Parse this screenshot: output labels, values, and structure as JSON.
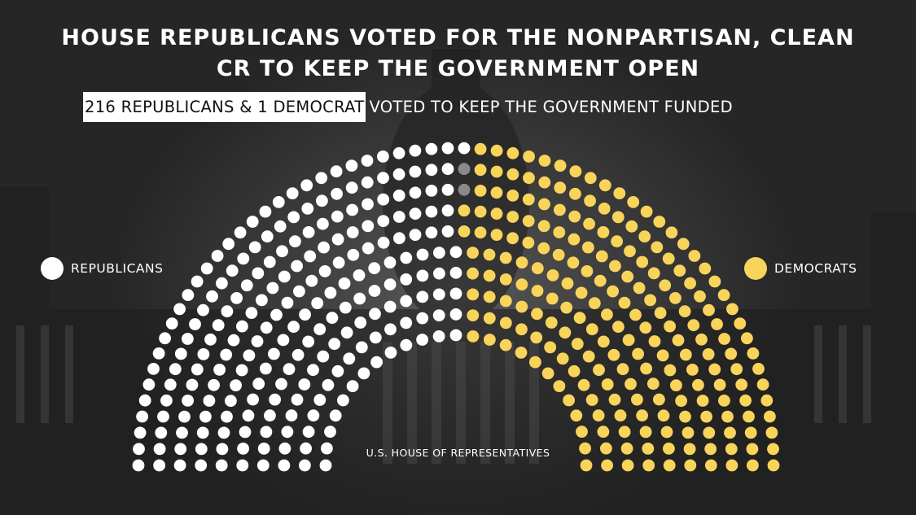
{
  "title_lines": [
    "HOUSE REPUBLICANS VOTED FOR THE NONPARTISAN, CLEAN",
    "CR TO KEEP THE GOVERNMENT OPEN"
  ],
  "subtitle": {
    "highlight": "216 REPUBLICANS & 1 DEMOCRAT",
    "rest": "VOTED TO KEEP THE GOVERNMENT FUNDED"
  },
  "legend": {
    "republicans": "REPUBLICANS",
    "democrats": "DEMOCRATS"
  },
  "chamber_label": "U.S. HOUSE OF REPRESENTATIVES",
  "colors": {
    "republican": "#ffffff",
    "democrat": "#f9d45a",
    "vacant": "#8a8a8a",
    "subtitle_highlight_bg": "#ffffff"
  },
  "chart_data": {
    "type": "parliament",
    "series": [
      {
        "name": "REPUBLICANS",
        "values": [
          221
        ]
      },
      {
        "name": "VACANT",
        "values": [
          2
        ]
      },
      {
        "name": "DEMOCRATS",
        "values": [
          212
        ]
      }
    ],
    "total_seats": 435
  }
}
